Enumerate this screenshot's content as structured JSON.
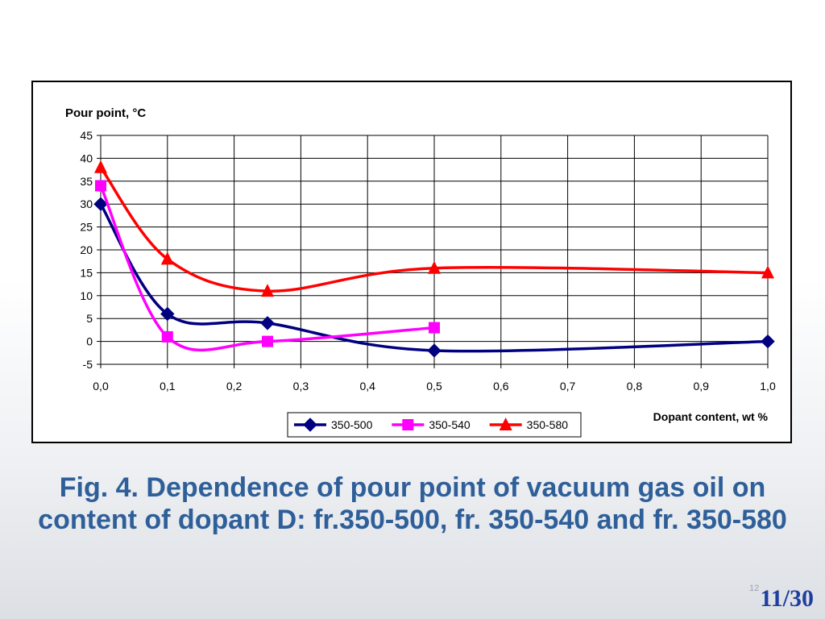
{
  "caption": "Fig. 4. Dependence of pour point of vacuum gas oil on content of dopant D: fr.350-500, fr. 350-540 and fr. 350-580",
  "slide_number": "11/30",
  "footnote_mark": "12",
  "chart_data": {
    "type": "line",
    "ylabel": "Pour point, °C",
    "xlabel": "Dopant content, wt %",
    "xlim": [
      0,
      1
    ],
    "ylim": [
      -5,
      45
    ],
    "x_ticks": [
      "0,0",
      "0,1",
      "0,2",
      "0,3",
      "0,4",
      "0,5",
      "0,6",
      "0,7",
      "0,8",
      "0,9",
      "1,0"
    ],
    "y_ticks": [
      "-5",
      "0",
      "5",
      "10",
      "15",
      "20",
      "25",
      "30",
      "35",
      "40",
      "45"
    ],
    "grid": true,
    "legend_position": "bottom-center",
    "series": [
      {
        "name": "350-500",
        "color": "#000080",
        "marker": "diamond",
        "points": [
          [
            0.0,
            30
          ],
          [
            0.1,
            6
          ],
          [
            0.25,
            4
          ],
          [
            0.5,
            -2
          ],
          [
            1.0,
            0
          ]
        ]
      },
      {
        "name": "350-540",
        "color": "#ff00ff",
        "marker": "square",
        "points": [
          [
            0.0,
            34
          ],
          [
            0.1,
            1
          ],
          [
            0.25,
            0
          ],
          [
            0.5,
            3
          ]
        ]
      },
      {
        "name": "350-580",
        "color": "#ff0000",
        "marker": "triangle",
        "points": [
          [
            0.0,
            38
          ],
          [
            0.1,
            18
          ],
          [
            0.25,
            11
          ],
          [
            0.5,
            16
          ],
          [
            1.0,
            15
          ]
        ]
      }
    ]
  }
}
